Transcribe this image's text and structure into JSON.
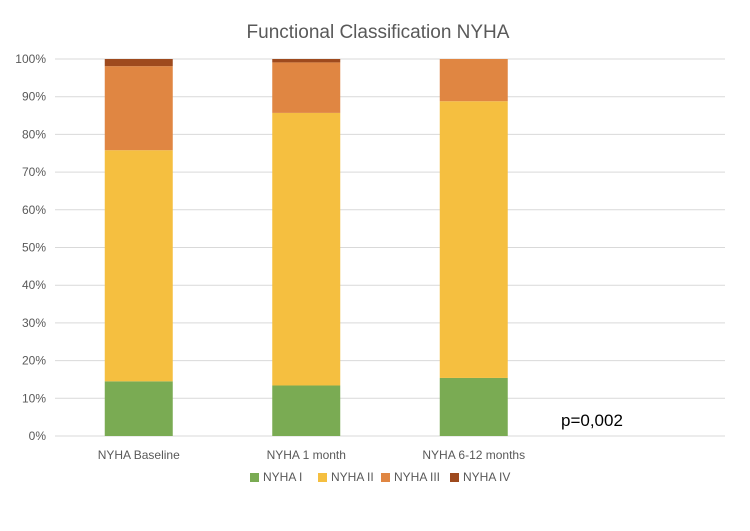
{
  "chart_data": {
    "type": "bar",
    "stacked": true,
    "title": "Functional Classification NYHA",
    "categories": [
      "NYHA Baseline",
      "NYHA 1 month",
      "NYHA 6-12 months"
    ],
    "series": [
      {
        "name": "NYHA I",
        "color": "#7aab53",
        "values": [
          14.5,
          13.4,
          15.4
        ]
      },
      {
        "name": "NYHA II",
        "color": "#f5bf40",
        "values": [
          61.3,
          72.3,
          73.4
        ]
      },
      {
        "name": "NYHA III",
        "color": "#e08642",
        "values": [
          22.3,
          13.4,
          11.2
        ]
      },
      {
        "name": "NYHA IV",
        "color": "#9e4a1e",
        "values": [
          1.9,
          0.9,
          0
        ]
      }
    ],
    "ylim": [
      0,
      100
    ],
    "yticks": [
      "0%",
      "10%",
      "20%",
      "30%",
      "40%",
      "50%",
      "60%",
      "70%",
      "80%",
      "90%",
      "100%"
    ],
    "grid": true,
    "legend_position": "bottom",
    "annotation": "p=0,002"
  }
}
